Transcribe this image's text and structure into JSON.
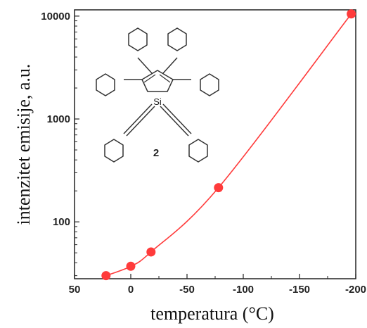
{
  "chart_data": {
    "type": "line",
    "xlabel": "temperatura (°C)",
    "ylabel": "intenzitet emisije, a.u.",
    "x_ticks": [
      50,
      0,
      -50,
      -100,
      -150,
      -200
    ],
    "x_tick_labels": [
      "50",
      "0",
      "-50",
      "-100",
      "-150",
      "-200"
    ],
    "xlim": [
      50,
      -200
    ],
    "x_reversed": true,
    "y_scale": "log",
    "y_ticks": [
      100,
      1000,
      10000
    ],
    "y_tick_labels": [
      "100",
      "1000",
      "10000"
    ],
    "ylim": [
      28,
      11500
    ],
    "grid": false,
    "series": [
      {
        "color": "#ff3b3b",
        "marker": "circle",
        "x": [
          22,
          0,
          -18,
          -78,
          -196
        ],
        "y": [
          30,
          37,
          51,
          215,
          10500
        ]
      }
    ],
    "inset": {
      "atom_label": "Si",
      "compound_label": "2"
    }
  }
}
